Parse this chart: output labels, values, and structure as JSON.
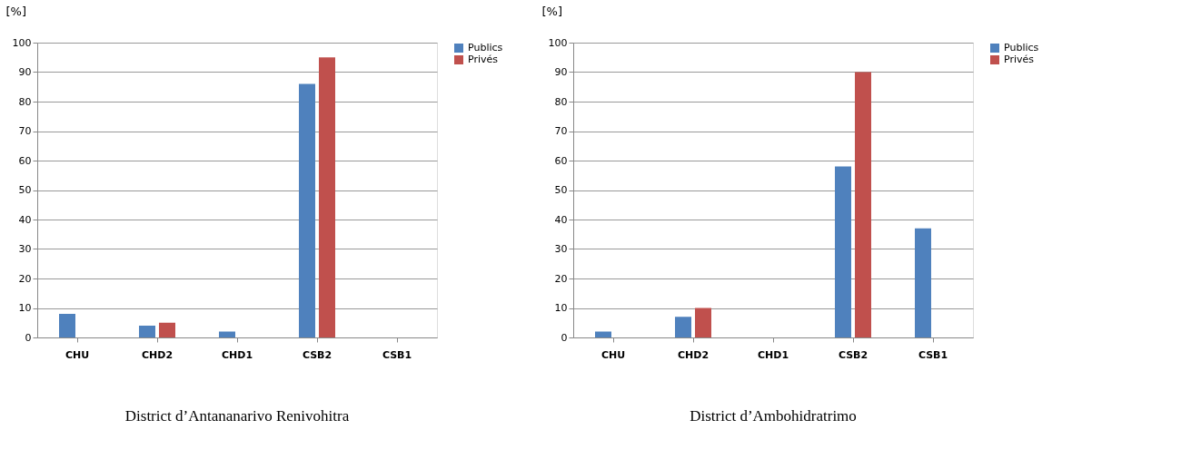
{
  "chart_data": [
    {
      "type": "bar",
      "title": "District d’Antananarivo Renivohitra",
      "ylabel": "[%]",
      "categories": [
        "CHU",
        "CHD2",
        "CHD1",
        "CSB2",
        "CSB1"
      ],
      "series": [
        {
          "name": "Publics",
          "color": "#4f81bd",
          "values": [
            8,
            4,
            2,
            86,
            0
          ]
        },
        {
          "name": "Privés",
          "color": "#c0504d",
          "values": [
            0,
            5,
            0,
            95,
            0
          ]
        }
      ],
      "ylim": [
        0,
        100
      ],
      "yticks": [
        0,
        10,
        20,
        30,
        40,
        50,
        60,
        70,
        80,
        90,
        100
      ],
      "grid": "y",
      "legend": "right"
    },
    {
      "type": "bar",
      "title": "District d’Ambohidratrimo",
      "ylabel": "[%]",
      "categories": [
        "CHU",
        "CHD2",
        "CHD1",
        "CSB2",
        "CSB1"
      ],
      "series": [
        {
          "name": "Publics",
          "color": "#4f81bd",
          "values": [
            2,
            7,
            0,
            58,
            37
          ]
        },
        {
          "name": "Privés",
          "color": "#c0504d",
          "values": [
            0,
            10,
            0,
            90,
            0
          ]
        }
      ],
      "ylim": [
        0,
        100
      ],
      "yticks": [
        0,
        10,
        20,
        30,
        40,
        50,
        60,
        70,
        80,
        90,
        100
      ],
      "grid": "y",
      "legend": "right"
    }
  ]
}
